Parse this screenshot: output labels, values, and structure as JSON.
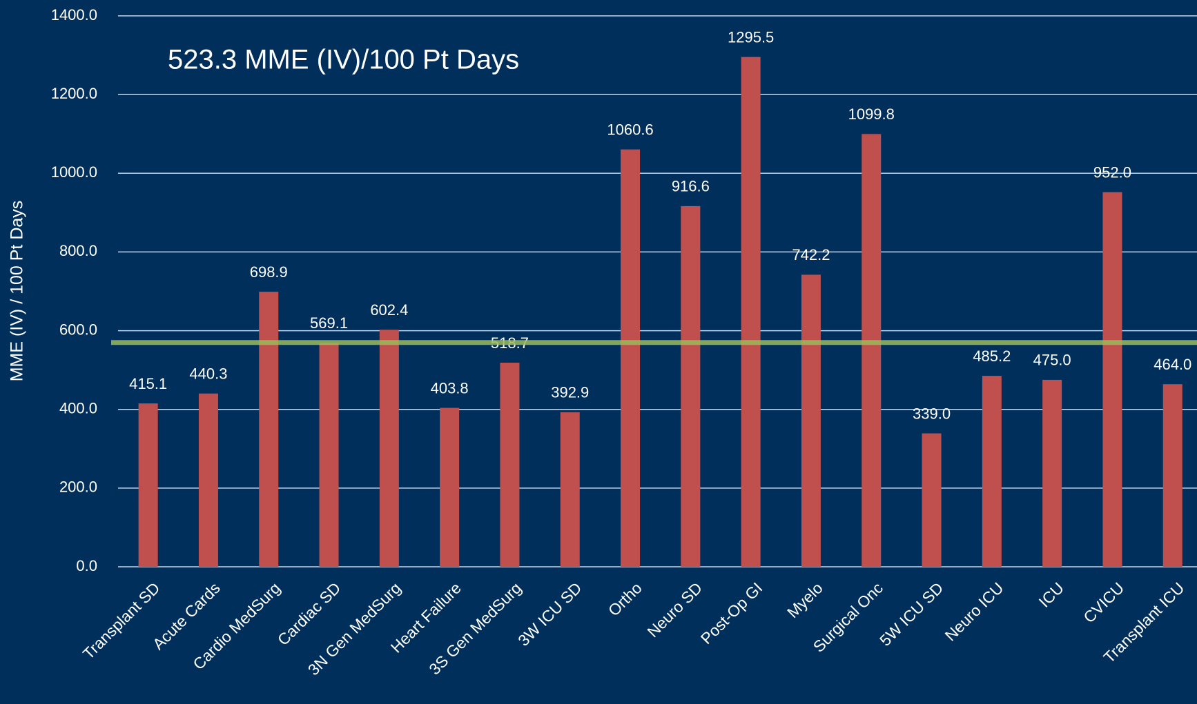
{
  "chart_data": {
    "type": "bar",
    "annotation": "523.3 MME (IV)/100 Pt Days",
    "y_label": "MME (IV) / 100 Pt Days",
    "categories": [
      "Transplant SD",
      "Acute Cards",
      "Cardio MedSurg",
      "Cardiac SD",
      "3N Gen MedSurg",
      "Heart Failure",
      "3S Gen MedSurg",
      "3W ICU SD",
      "Ortho",
      "Neuro SD",
      "Post-Op GI",
      "Myelo",
      "Surgical Onc",
      "5W ICU SD",
      "Neuro ICU",
      "ICU",
      "CVICU",
      "Transplant ICU"
    ],
    "values": [
      415.1,
      440.3,
      698.9,
      569.1,
      602.4,
      403.8,
      518.7,
      392.9,
      1060.6,
      916.6,
      1295.5,
      742.2,
      1099.8,
      339.0,
      485.2,
      475.0,
      952.0,
      464.0
    ],
    "value_labels": [
      "415.1",
      "440.3",
      "698.9",
      "569.1",
      "602.4",
      "403.8",
      "518.7",
      "392.9",
      "1060.6",
      "916.6",
      "1295.5",
      "742.2",
      "1099.8",
      "339.0",
      "485.2",
      "475.0",
      "952.0",
      "464.0"
    ],
    "color": "#c0504d",
    "reference_line": {
      "value": 570,
      "color": "#9bbb59"
    },
    "ylim": [
      0,
      1400
    ],
    "yticks": [
      {
        "value": 0,
        "label": "0.0"
      },
      {
        "value": 200,
        "label": "200.0"
      },
      {
        "value": 400,
        "label": "400.0"
      },
      {
        "value": 600,
        "label": "600.0"
      },
      {
        "value": 800,
        "label": "800.0"
      },
      {
        "value": 1000,
        "label": "1000.0"
      },
      {
        "value": 1200,
        "label": "1200.0"
      },
      {
        "value": 1400,
        "label": "1400.0"
      }
    ],
    "grid": true
  }
}
